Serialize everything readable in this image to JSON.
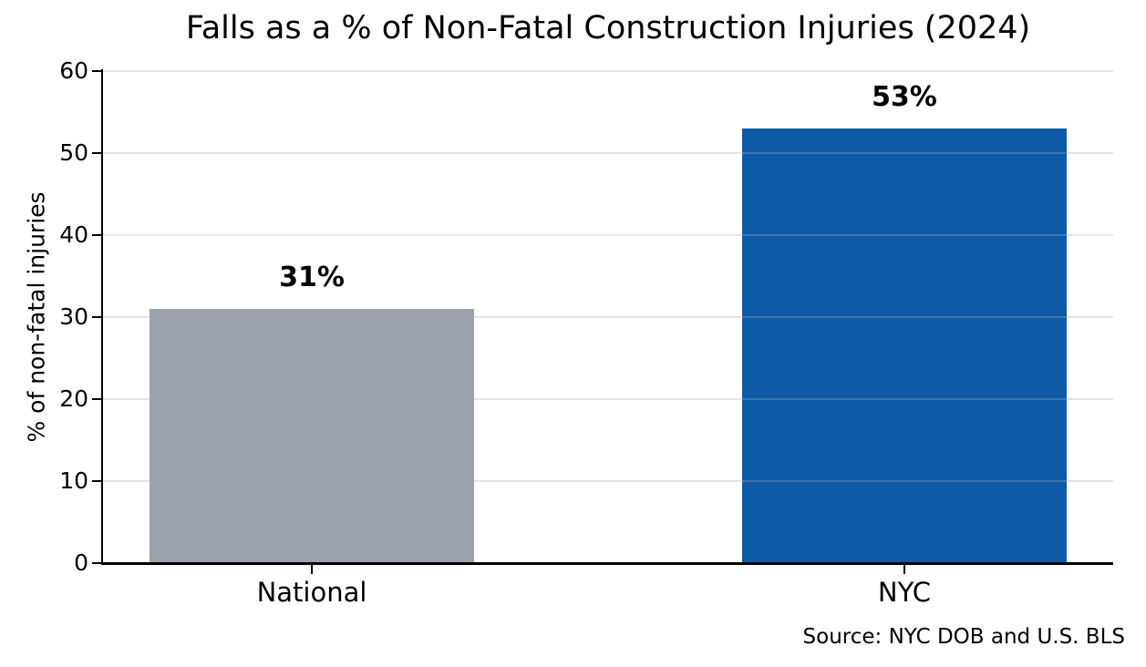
{
  "chart_data": {
    "type": "bar",
    "title": "Falls as a % of Non-Fatal Construction Injuries (2024)",
    "categories": [
      "National",
      "NYC"
    ],
    "values": [
      31,
      53
    ],
    "value_labels": [
      "31%",
      "53%"
    ],
    "bar_colors": [
      "#9ba2ad",
      "#0e5aa7"
    ],
    "xlabel": "",
    "ylabel": "% of non-fatal injuries",
    "ylim": [
      0,
      60
    ],
    "yticks": [
      0,
      10,
      20,
      30,
      40,
      50,
      60
    ],
    "grid": "horizontal",
    "legend": "none",
    "source": "Source: NYC DOB and U.S. BLS",
    "background_color": "#ffffff",
    "axis_color": "#000000",
    "grid_color": "#ebebeb"
  }
}
